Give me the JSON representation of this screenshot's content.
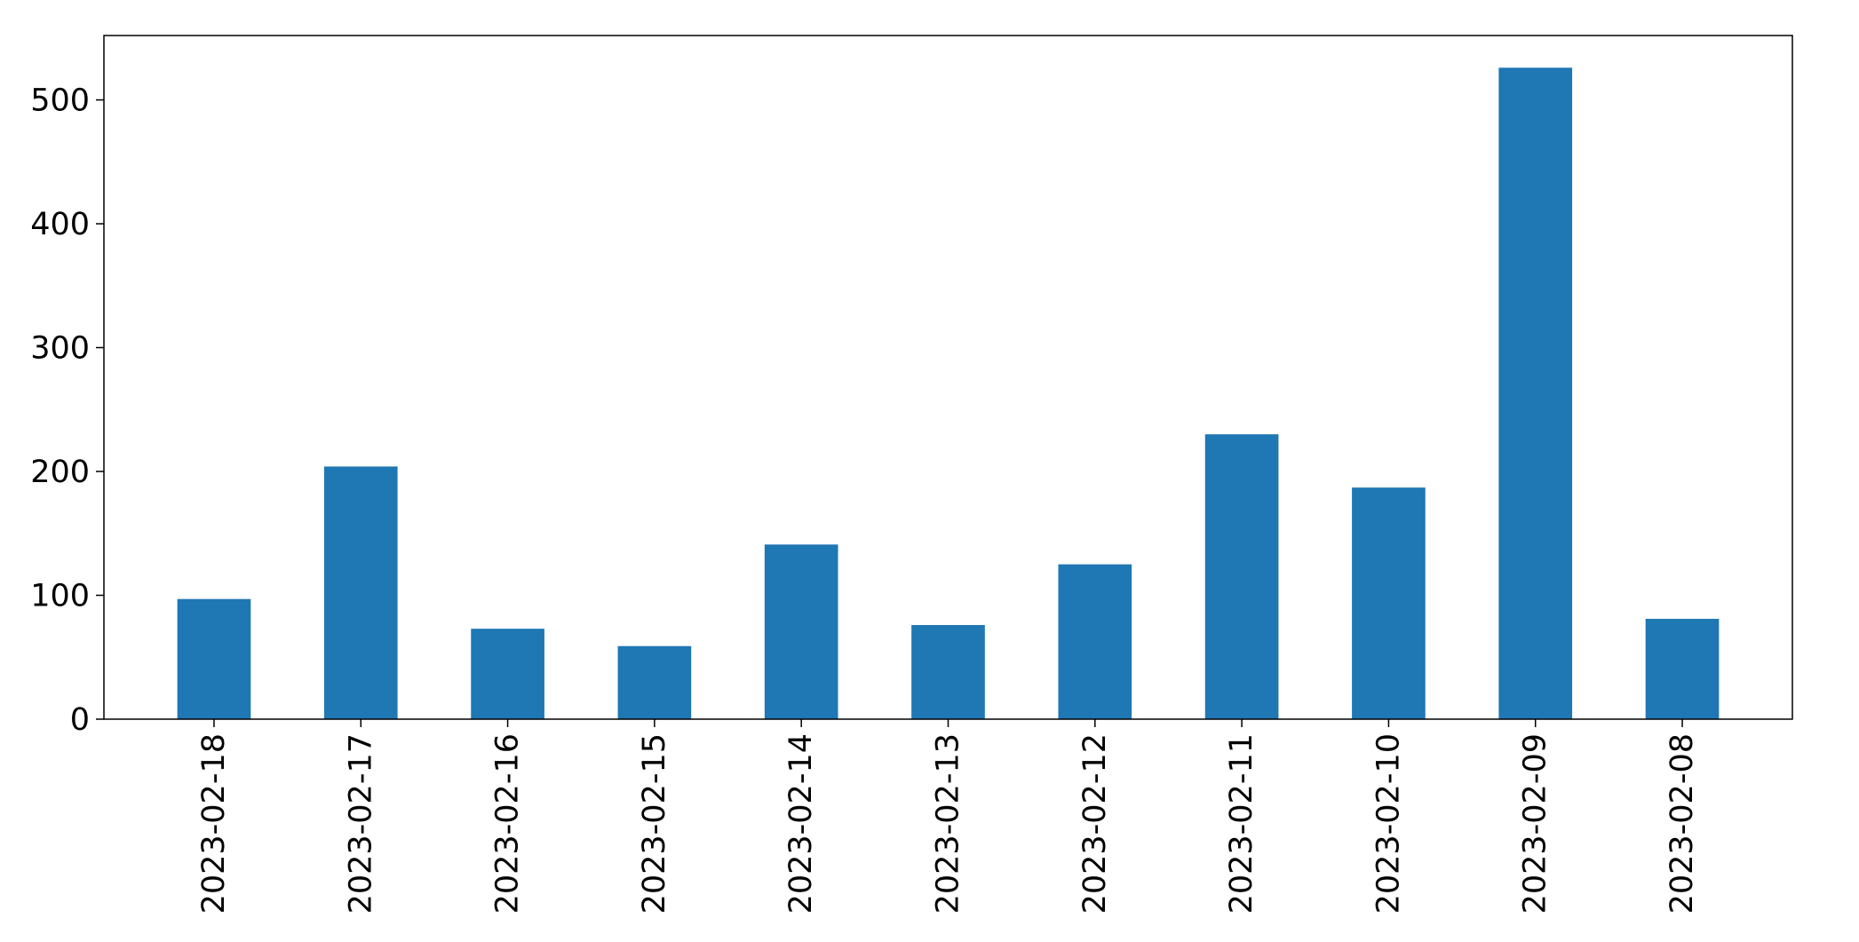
{
  "chart_data": {
    "type": "bar",
    "title": "",
    "xlabel": "",
    "ylabel": "",
    "categories": [
      "2023-02-18",
      "2023-02-17",
      "2023-02-16",
      "2023-02-15",
      "2023-02-14",
      "2023-02-13",
      "2023-02-12",
      "2023-02-11",
      "2023-02-10",
      "2023-02-09",
      "2023-02-08"
    ],
    "values": [
      97,
      204,
      73,
      59,
      141,
      76,
      125,
      230,
      187,
      526,
      81
    ],
    "ylim": [
      0,
      552
    ],
    "yticks": [
      0,
      100,
      200,
      300,
      400,
      500
    ],
    "ytick_labels": [
      "0",
      "100",
      "200",
      "300",
      "400",
      "500"
    ],
    "bar_color": "#1f77b4",
    "grid": false,
    "legend": "none"
  }
}
